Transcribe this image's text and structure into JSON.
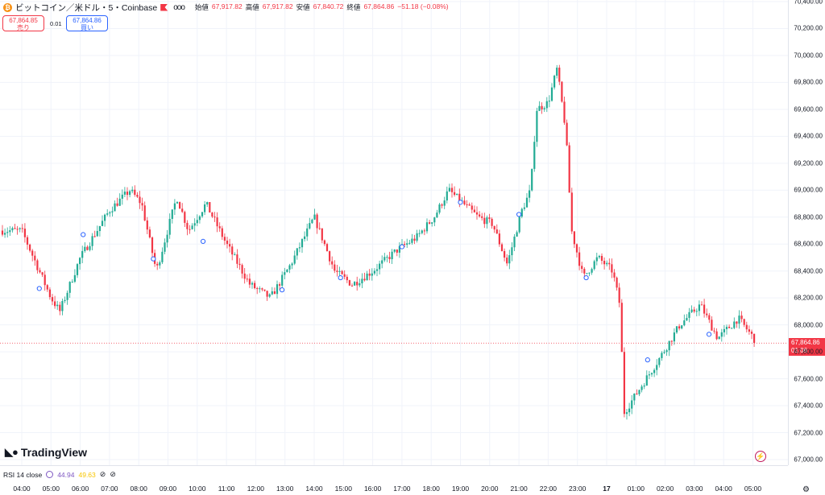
{
  "header": {
    "coin_glyph": "₿",
    "symbol_title": "ビットコイン／米ドル・5・Coinbase",
    "more": "ooo",
    "ohlc": [
      {
        "key": "始値",
        "value": "67,917.82"
      },
      {
        "key": "高値",
        "value": "67,917.82"
      },
      {
        "key": "安値",
        "value": "67,840.72"
      },
      {
        "key": "終値",
        "value": "67,864.86"
      },
      {
        "key": "",
        "value": "−51.18 (−0.08%)"
      }
    ],
    "sell_price": "67,864.85",
    "sell_label": "売り",
    "spread": "0.01",
    "buy_price": "67,864.86",
    "buy_label": "買い"
  },
  "logo": "TradingView",
  "rsi": {
    "label": "RSI 14 close",
    "value1": "44.94",
    "value2": "49.63"
  },
  "current_price": {
    "price": "67,864.86",
    "countdown": "01:06"
  },
  "colors": {
    "up": "#22ab94",
    "down": "#f23645",
    "grid": "#f0f3fa",
    "marker": "#2962ff"
  },
  "chart_data": {
    "type": "candlestick",
    "ylim": [
      67000,
      70400
    ],
    "price_ticks": [
      "70,400.00",
      "70,200.00",
      "70,000.00",
      "69,800.00",
      "69,600.00",
      "69,400.00",
      "69,200.00",
      "69,000.00",
      "68,800.00",
      "68,600.00",
      "68,400.00",
      "68,200.00",
      "68,000.00",
      "67,800.00",
      "67,600.00",
      "67,400.00",
      "67,200.00",
      "67,000.00"
    ],
    "price_tick_values": [
      70400,
      70200,
      70000,
      69800,
      69600,
      69400,
      69200,
      69000,
      68800,
      68600,
      68400,
      68200,
      68000,
      67800,
      67600,
      67400,
      67200,
      67000
    ],
    "time_labels": [
      "04:00",
      "05:00",
      "06:00",
      "07:00",
      "08:00",
      "09:00",
      "10:00",
      "11:00",
      "12:00",
      "13:00",
      "14:00",
      "15:00",
      "16:00",
      "17:00",
      "18:00",
      "19:00",
      "20:00",
      "21:00",
      "22:00",
      "23:00",
      "17",
      "01:00",
      "02:00",
      "03:00",
      "04:00",
      "05:00"
    ],
    "bold_time_labels": [
      "17"
    ],
    "path": [
      {
        "t": 0,
        "p": 68700
      },
      {
        "t": 1,
        "p": 68200
      },
      {
        "t": 1.3,
        "p": 68100
      },
      {
        "t": 2,
        "p": 68500
      },
      {
        "t": 3,
        "p": 68850
      },
      {
        "t": 3.7,
        "p": 69000
      },
      {
        "t": 4.1,
        "p": 68900
      },
      {
        "t": 4.6,
        "p": 68400
      },
      {
        "t": 5.3,
        "p": 68950
      },
      {
        "t": 5.7,
        "p": 68700
      },
      {
        "t": 6.3,
        "p": 68900
      },
      {
        "t": 7,
        "p": 68600
      },
      {
        "t": 7.8,
        "p": 68300
      },
      {
        "t": 8.5,
        "p": 68200
      },
      {
        "t": 9.2,
        "p": 68450
      },
      {
        "t": 10,
        "p": 68800
      },
      {
        "t": 10.7,
        "p": 68400
      },
      {
        "t": 11.3,
        "p": 68300
      },
      {
        "t": 12,
        "p": 68400
      },
      {
        "t": 12.8,
        "p": 68550
      },
      {
        "t": 13.5,
        "p": 68650
      },
      {
        "t": 14.1,
        "p": 68800
      },
      {
        "t": 14.6,
        "p": 69000
      },
      {
        "t": 15.1,
        "p": 68900
      },
      {
        "t": 15.6,
        "p": 68800
      },
      {
        "t": 16.1,
        "p": 68750
      },
      {
        "t": 16.6,
        "p": 68450
      },
      {
        "t": 17.1,
        "p": 68850
      },
      {
        "t": 17.4,
        "p": 69000
      },
      {
        "t": 17.6,
        "p": 69600
      },
      {
        "t": 18.0,
        "p": 69650
      },
      {
        "t": 18.3,
        "p": 69900
      },
      {
        "t": 18.6,
        "p": 69450
      },
      {
        "t": 18.8,
        "p": 68700
      },
      {
        "t": 19.2,
        "p": 68350
      },
      {
        "t": 19.7,
        "p": 68500
      },
      {
        "t": 20.2,
        "p": 68400
      },
      {
        "t": 20.45,
        "p": 68150
      },
      {
        "t": 20.6,
        "p": 67350
      },
      {
        "t": 21.2,
        "p": 67550
      },
      {
        "t": 21.8,
        "p": 67750
      },
      {
        "t": 22.5,
        "p": 68000
      },
      {
        "t": 23.2,
        "p": 68150
      },
      {
        "t": 23.8,
        "p": 67900
      },
      {
        "t": 24.5,
        "p": 68050
      },
      {
        "t": 25.1,
        "p": 67880
      }
    ],
    "markers": [
      {
        "t": 0.6,
        "p": 68270
      },
      {
        "t": 2.1,
        "p": 68670
      },
      {
        "t": 4.5,
        "p": 68490
      },
      {
        "t": 6.2,
        "p": 68620
      },
      {
        "t": 8.9,
        "p": 68260
      },
      {
        "t": 10.9,
        "p": 68350
      },
      {
        "t": 13.0,
        "p": 68580
      },
      {
        "t": 15.0,
        "p": 68910
      },
      {
        "t": 17.0,
        "p": 68820
      },
      {
        "t": 19.3,
        "p": 68350
      },
      {
        "t": 21.4,
        "p": 67740
      },
      {
        "t": 23.5,
        "p": 67930
      }
    ],
    "current": 67864.86
  }
}
